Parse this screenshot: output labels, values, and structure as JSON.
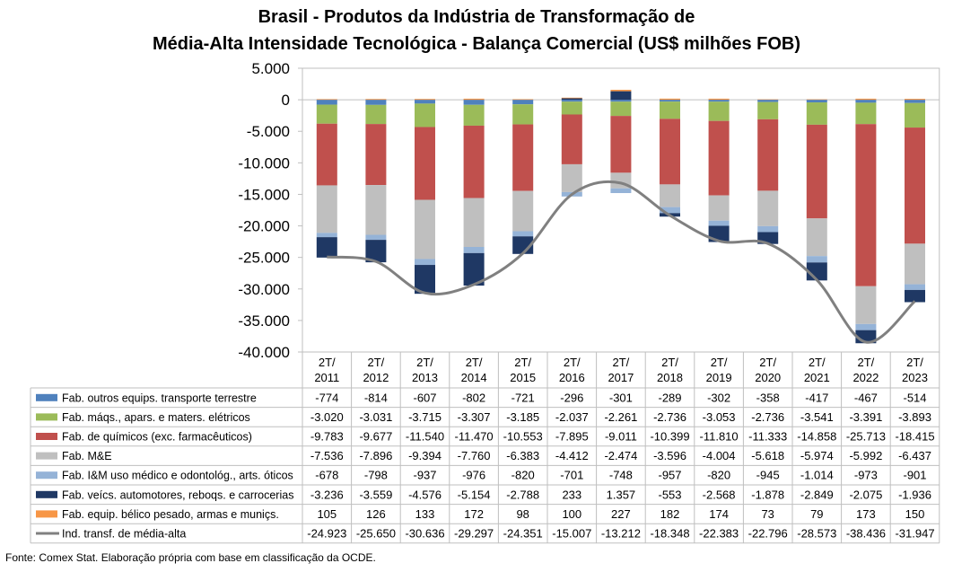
{
  "title_line1": "Brasil - Produtos da Indústria de Transformação de",
  "title_line2": "Média-Alta Intensidade Tecnológica - Balança Comercial (US$ milhões FOB)",
  "source": "Fonte: Comex Stat. Elaboração própria com base em classificação da OCDE.",
  "chart_data": {
    "type": "bar",
    "stacked": true,
    "categories": [
      "2T/ 2011",
      "2T/ 2012",
      "2T/ 2013",
      "2T/ 2014",
      "2T/ 2015",
      "2T/ 2016",
      "2T/ 2017",
      "2T/ 2018",
      "2T/ 2019",
      "2T/ 2020",
      "2T/ 2021",
      "2T/ 2022",
      "2T/ 2023"
    ],
    "ylim": [
      -40000,
      5000
    ],
    "yticks": [
      5000,
      0,
      -5000,
      -10000,
      -15000,
      -20000,
      -25000,
      -30000,
      -35000,
      -40000
    ],
    "ytick_labels": [
      "5.000",
      "0",
      "-5.000",
      "-10.000",
      "-15.000",
      "-20.000",
      "-25.000",
      "-30.000",
      "-35.000",
      "-40.000"
    ],
    "legend_placement": "data table",
    "series": [
      {
        "name": "Fab. outros equips. transporte terrestre",
        "color": "#4f81bd",
        "type": "bar",
        "values": [
          -774,
          -814,
          -607,
          -802,
          -721,
          -296,
          -301,
          -289,
          -302,
          -358,
          -417,
          -467,
          -514
        ],
        "labels": [
          "-774",
          "-814",
          "-607",
          "-802",
          "-721",
          "-296",
          "-301",
          "-289",
          "-302",
          "-358",
          "-417",
          "-467",
          "-514"
        ]
      },
      {
        "name": "Fab. máqs., apars. e maters. elétricos",
        "color": "#9bbb59",
        "type": "bar",
        "values": [
          -3020,
          -3031,
          -3715,
          -3307,
          -3185,
          -2037,
          -2261,
          -2736,
          -3053,
          -2736,
          -3541,
          -3391,
          -3893
        ],
        "labels": [
          "-3.020",
          "-3.031",
          "-3.715",
          "-3.307",
          "-3.185",
          "-2.037",
          "-2.261",
          "-2.736",
          "-3.053",
          "-2.736",
          "-3.541",
          "-3.391",
          "-3.893"
        ]
      },
      {
        "name": "Fab. de químicos (exc. farmacêuticos)",
        "color": "#c0504d",
        "type": "bar",
        "values": [
          -9783,
          -9677,
          -11540,
          -11470,
          -10553,
          -7895,
          -9011,
          -10399,
          -11810,
          -11333,
          -14858,
          -25713,
          -18415
        ],
        "labels": [
          "-9.783",
          "-9.677",
          "-11.540",
          "-11.470",
          "-10.553",
          "-7.895",
          "-9.011",
          "-10.399",
          "-11.810",
          "-11.333",
          "-14.858",
          "-25.713",
          "-18.415"
        ]
      },
      {
        "name": "Fab. M&E",
        "color": "#bfbfbf",
        "type": "bar",
        "values": [
          -7536,
          -7896,
          -9394,
          -7760,
          -6383,
          -4412,
          -2474,
          -3596,
          -4004,
          -5618,
          -5974,
          -5992,
          -6437
        ],
        "labels": [
          "-7.536",
          "-7.896",
          "-9.394",
          "-7.760",
          "-6.383",
          "-4.412",
          "-2.474",
          "-3.596",
          "-4.004",
          "-5.618",
          "-5.974",
          "-5.992",
          "-6.437"
        ]
      },
      {
        "name": "Fab. I&M uso médico e odontológ., arts. óticos",
        "color": "#95b3d7",
        "type": "bar",
        "values": [
          -678,
          -798,
          -937,
          -976,
          -820,
          -701,
          -748,
          -957,
          -820,
          -945,
          -1014,
          -973,
          -901
        ],
        "labels": [
          "-678",
          "-798",
          "-937",
          "-976",
          "-820",
          "-701",
          "-748",
          "-957",
          "-820",
          "-945",
          "-1.014",
          "-973",
          "-901"
        ]
      },
      {
        "name": "Fab. veícs. automotores, reboqs. e carrocerias",
        "color": "#1f3864",
        "type": "bar",
        "values": [
          -3236,
          -3559,
          -4576,
          -5154,
          -2788,
          233,
          1357,
          -553,
          -2568,
          -1878,
          -2849,
          -2075,
          -1936
        ],
        "labels": [
          "-3.236",
          "-3.559",
          "-4.576",
          "-5.154",
          "-2.788",
          "233",
          "1.357",
          "-553",
          "-2.568",
          "-1.878",
          "-2.849",
          "-2.075",
          "-1.936"
        ]
      },
      {
        "name": "Fab. equip. bélico pesado, armas e muniçs.",
        "color": "#f79646",
        "type": "bar",
        "values": [
          105,
          126,
          133,
          172,
          98,
          100,
          227,
          182,
          174,
          73,
          79,
          173,
          150
        ],
        "labels": [
          "105",
          "126",
          "133",
          "172",
          "98",
          "100",
          "227",
          "182",
          "174",
          "73",
          "79",
          "173",
          "150"
        ]
      },
      {
        "name": "Ind. transf. de média-alta",
        "color": "#808080",
        "type": "line",
        "values": [
          -24923,
          -25650,
          -30636,
          -29297,
          -24351,
          -15007,
          -13212,
          -18348,
          -22383,
          -22796,
          -28573,
          -38436,
          -31947
        ],
        "labels": [
          "-24.923",
          "-25.650",
          "-30.636",
          "-29.297",
          "-24.351",
          "-15.007",
          "-13.212",
          "-18.348",
          "-22.383",
          "-22.796",
          "-28.573",
          "-38.436",
          "-31.947"
        ]
      }
    ]
  }
}
